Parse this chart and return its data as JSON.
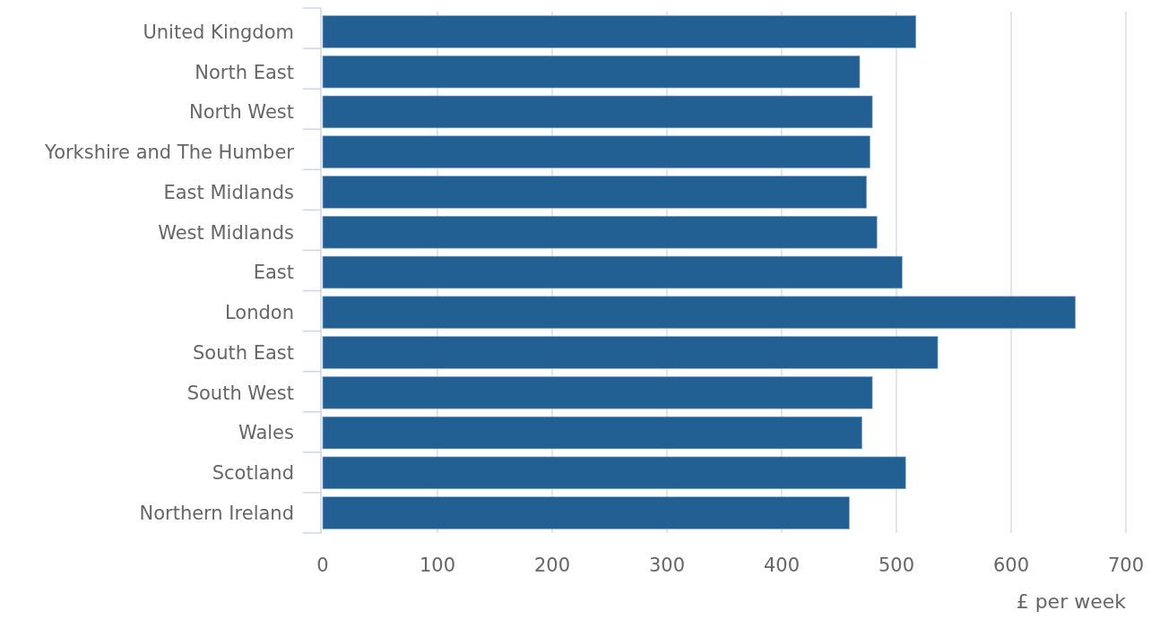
{
  "chart_data": {
    "type": "bar",
    "orientation": "horizontal",
    "xlabel": "£ per week",
    "categories": [
      "United Kingdom",
      "North East",
      "North West",
      "Yorkshire and The Humber",
      "East Midlands",
      "West Midlands",
      "East",
      "London",
      "South East",
      "South West",
      "Wales",
      "Scotland",
      "Northern Ireland"
    ],
    "values": [
      517,
      468,
      479,
      477,
      474,
      483,
      505,
      656,
      536,
      479,
      470,
      508,
      459
    ],
    "color": "#226094",
    "xlim": [
      0,
      700
    ],
    "xticks": [
      0,
      100,
      200,
      300,
      400,
      500,
      600,
      700
    ],
    "grid": "x"
  }
}
